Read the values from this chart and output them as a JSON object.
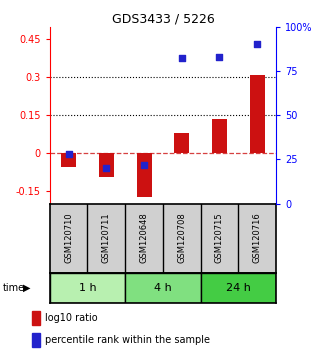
{
  "title": "GDS3433 / 5226",
  "samples": [
    "GSM120710",
    "GSM120711",
    "GSM120648",
    "GSM120708",
    "GSM120715",
    "GSM120716"
  ],
  "log10_ratio": [
    -0.055,
    -0.095,
    -0.175,
    0.08,
    0.135,
    0.31
  ],
  "percentile_rank": [
    28,
    20,
    22,
    82,
    83,
    90
  ],
  "time_groups": [
    {
      "label": "1 h",
      "samples": [
        0,
        1
      ],
      "color": "#b8f0b0"
    },
    {
      "label": "4 h",
      "samples": [
        2,
        3
      ],
      "color": "#80e080"
    },
    {
      "label": "24 h",
      "samples": [
        4,
        5
      ],
      "color": "#44cc44"
    }
  ],
  "ylim_left": [
    -0.2,
    0.5
  ],
  "ylim_right": [
    0,
    100
  ],
  "yticks_left": [
    -0.15,
    0,
    0.15,
    0.3,
    0.45
  ],
  "yticks_right": [
    0,
    25,
    50,
    75,
    100
  ],
  "hlines": [
    0.15,
    0.3
  ],
  "bar_color": "#cc1111",
  "dot_color": "#2222cc",
  "bg_color": "#d0d0d0",
  "legend_items": [
    "log10 ratio",
    "percentile rank within the sample"
  ]
}
